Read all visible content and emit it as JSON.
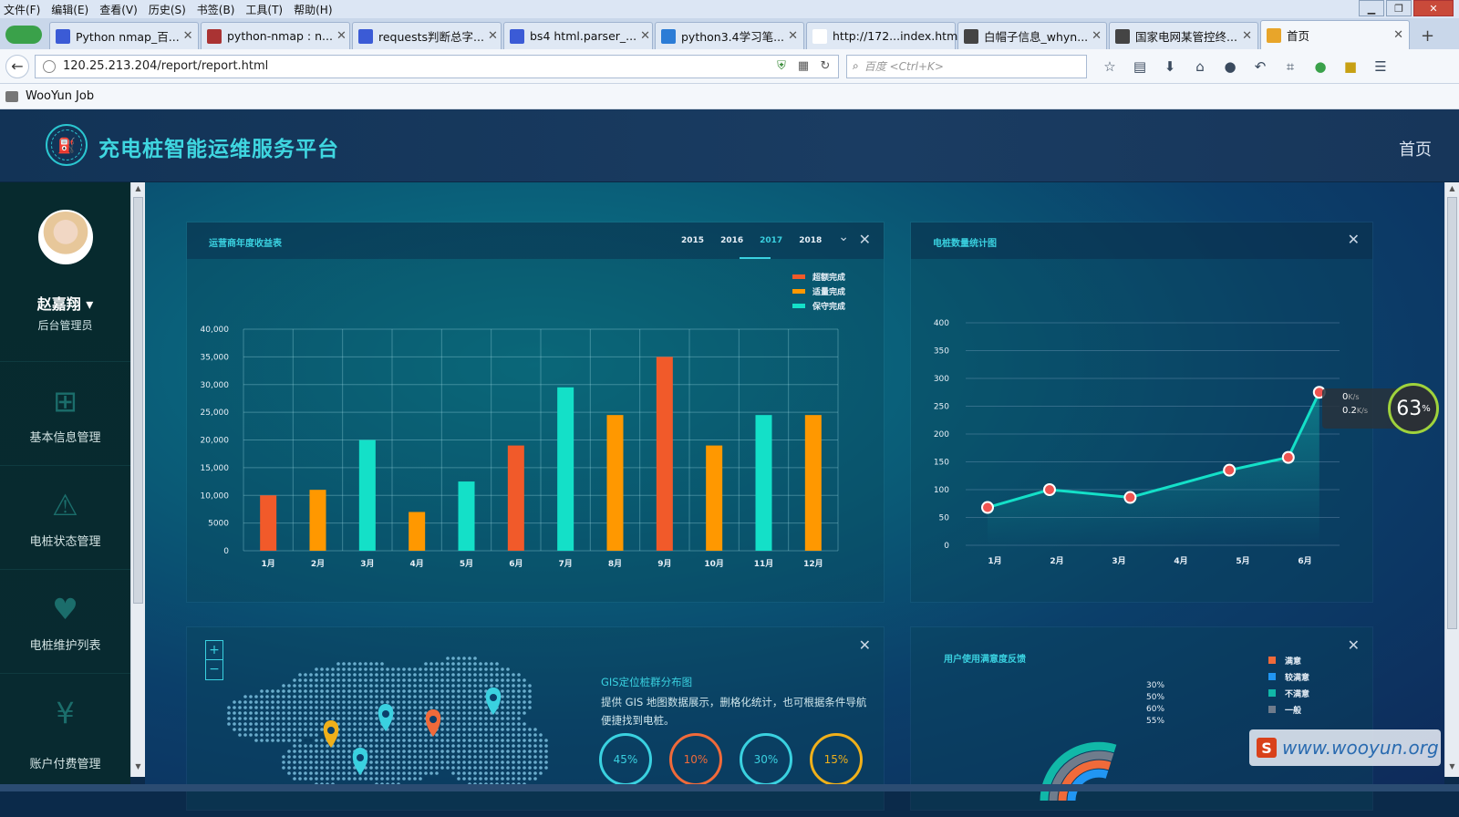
{
  "browser": {
    "menu": [
      "文件(F)",
      "编辑(E)",
      "查看(V)",
      "历史(S)",
      "书签(B)",
      "工具(T)",
      "帮助(H)"
    ],
    "tabs": [
      {
        "title": "Python nmap_百...",
        "color": "#3b5bd6"
      },
      {
        "title": "python-nmap : n...",
        "color": "#a33"
      },
      {
        "title": "requests判断总字...",
        "color": "#3b5bd6"
      },
      {
        "title": "bs4 html.parser_...",
        "color": "#3b5bd6"
      },
      {
        "title": "python3.4学习笔...",
        "color": "#2b7cd6"
      },
      {
        "title": "http://172...index.html",
        "color": "#ffffff"
      },
      {
        "title": "白帽子信息_whyn...",
        "color": "#444"
      },
      {
        "title": "国家电网某管控终...",
        "color": "#444"
      },
      {
        "title": "首页",
        "color": "#e8a52a"
      }
    ],
    "url": "120.25.213.204/report/report.html",
    "search_placeholder": "百度 <Ctrl+K>",
    "bookmark": "WooYun Job"
  },
  "app": {
    "title": "充电桩智能运维服务平台",
    "home": "首页",
    "user": {
      "name": "赵嘉翔",
      "role": "后台管理员"
    },
    "nav": [
      {
        "label": "基本信息管理",
        "icon": "sitemap-icon"
      },
      {
        "label": "电桩状态管理",
        "icon": "warning-icon"
      },
      {
        "label": "电桩维护列表",
        "icon": "heartbeat-icon"
      },
      {
        "label": "账户付费管理",
        "icon": "yen-icon"
      }
    ]
  },
  "revenue_panel": {
    "title": "运营商年度收益表",
    "years": [
      "2015",
      "2016",
      "2017",
      "2018"
    ],
    "active_year": "2017"
  },
  "pile_panel": {
    "title": "电桩数量统计图"
  },
  "gis_panel": {
    "title": "GIS定位桩群分布图",
    "desc_line1": "提供 GIS 地图数据展示，删格化统计，也可根据条件导航",
    "desc_line2": "便捷找到电桩。",
    "gauges": [
      {
        "label": "45%",
        "value": 0.45,
        "color": "#3ad1e0"
      },
      {
        "label": "10%",
        "value": 0.1,
        "color": "#f06a3a"
      },
      {
        "label": "30%",
        "value": 0.3,
        "color": "#3ad1e0"
      },
      {
        "label": "15%",
        "value": 0.15,
        "color": "#f0b01a"
      }
    ],
    "zoom_in": "+",
    "zoom_out": "−"
  },
  "satisfaction_panel": {
    "title": "用户使用满意度反馈",
    "legend": [
      {
        "label": "满意",
        "color": "#f06a3a"
      },
      {
        "label": "较满意",
        "color": "#2196f3"
      },
      {
        "label": "不满意",
        "color": "#11b8a8"
      },
      {
        "label": "一般",
        "color": "#6f7c8c"
      }
    ],
    "percents": [
      "30%",
      "50%",
      "60%",
      "55%"
    ]
  },
  "speed_widget": {
    "up": "0",
    "down": "0.2",
    "unit": "K/s",
    "percent": "63",
    "pct_sign": "%"
  },
  "watermark": "www.wooyun.org",
  "chart_data": [
    {
      "type": "bar",
      "categories": [
        "1月",
        "2月",
        "3月",
        "4月",
        "5月",
        "6月",
        "7月",
        "8月",
        "9月",
        "10月",
        "11月",
        "12月"
      ],
      "values": [
        10000,
        11000,
        20000,
        7000,
        12500,
        19000,
        29500,
        24500,
        35000,
        19000,
        24500,
        24500
      ],
      "bar_series": [
        "超额完成",
        "适量完成",
        "保守完成",
        "适量完成",
        "保守完成",
        "超额完成",
        "保守完成",
        "适量完成",
        "超额完成",
        "适量完成",
        "保守完成",
        "适量完成"
      ],
      "legend": [
        {
          "name": "超额完成",
          "color": "#f15a2a"
        },
        {
          "name": "适量完成",
          "color": "#ff9800"
        },
        {
          "name": "保守完成",
          "color": "#14e0c8"
        }
      ],
      "yticks": [
        "40,000",
        "35,000",
        "30,000",
        "25,000",
        "20,000",
        "15,000",
        "10,000",
        "5000",
        "0"
      ],
      "ylim": [
        0,
        40000
      ]
    },
    {
      "type": "line",
      "categories": [
        "1月",
        "2月",
        "3月",
        "4月",
        "5月",
        "6月"
      ],
      "points": [
        {
          "x": 0.0,
          "y": 68
        },
        {
          "x": 1.0,
          "y": 100
        },
        {
          "x": 2.3,
          "y": 86
        },
        {
          "x": 3.9,
          "y": 135
        },
        {
          "x": 4.85,
          "y": 158
        },
        {
          "x": 5.35,
          "y": 275
        }
      ],
      "yticks": [
        "400",
        "350",
        "300",
        "250",
        "200",
        "150",
        "100",
        "50",
        "0"
      ],
      "ylim": [
        0,
        400
      ]
    }
  ]
}
